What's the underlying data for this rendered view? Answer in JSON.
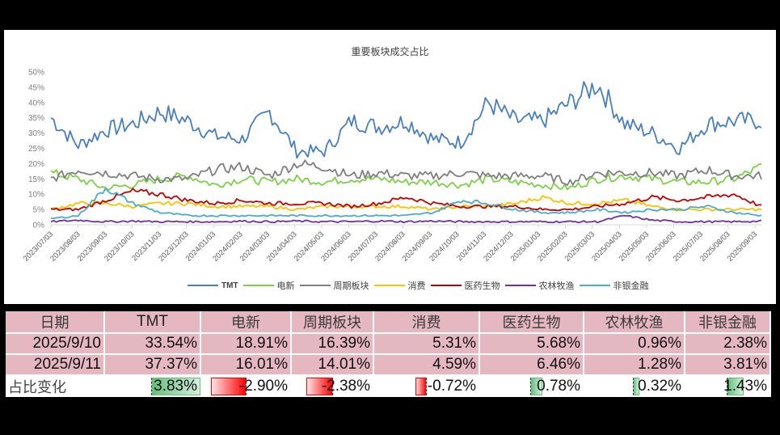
{
  "chart": {
    "title": "重要板块成交占比",
    "y_ticks": [
      "0%",
      "5%",
      "10%",
      "15%",
      "20%",
      "25%",
      "30%",
      "35%",
      "40%",
      "45%",
      "50%"
    ],
    "x_ticks": [
      "2023/07/03",
      "2023/08/03",
      "2023/09/03",
      "2023/10/03",
      "2023/11/03",
      "2023/12/03",
      "2024/01/03",
      "2024/02/03",
      "2024/03/03",
      "2024/04/03",
      "2024/05/03",
      "2024/06/03",
      "2024/07/03",
      "2024/08/03",
      "2024/09/03",
      "2024/10/03",
      "2024/11/03",
      "2024/12/03",
      "2025/01/03",
      "2025/02/03",
      "2025/03/03",
      "2025/04/03",
      "2025/05/03",
      "2025/06/03",
      "2025/07/03",
      "2025/08/03",
      "2025/09/03"
    ],
    "legend": [
      {
        "label": "TMT",
        "color": "#4a7ebb"
      },
      {
        "label": "电新",
        "color": "#7fcf4d"
      },
      {
        "label": "周期板块",
        "color": "#7f7f7f"
      },
      {
        "label": "消费",
        "color": "#ffc000"
      },
      {
        "label": "医药生物",
        "color": "#c00000"
      },
      {
        "label": "农林牧渔",
        "color": "#7030a0"
      },
      {
        "label": "非银金融",
        "color": "#4bacc6"
      }
    ]
  },
  "chart_data": {
    "type": "line",
    "title": "重要板块成交占比",
    "xlabel": "",
    "ylabel": "",
    "ylim": [
      0,
      0.5
    ],
    "y_format": "percent",
    "grid": false,
    "legend_position": "bottom",
    "x": [
      "2023/07",
      "2023/08",
      "2023/09",
      "2023/10",
      "2023/11",
      "2023/12",
      "2024/01",
      "2024/02",
      "2024/03",
      "2024/04",
      "2024/05",
      "2024/06",
      "2024/07",
      "2024/08",
      "2024/09",
      "2024/10",
      "2024/11",
      "2024/12",
      "2025/01",
      "2025/02",
      "2025/03",
      "2025/04",
      "2025/05",
      "2025/06",
      "2025/07",
      "2025/08",
      "2025/09"
    ],
    "series": [
      {
        "name": "TMT",
        "color": "#4a7ebb",
        "values": [
          0.35,
          0.26,
          0.31,
          0.33,
          0.37,
          0.34,
          0.29,
          0.28,
          0.37,
          0.24,
          0.24,
          0.34,
          0.32,
          0.34,
          0.28,
          0.27,
          0.4,
          0.34,
          0.34,
          0.4,
          0.46,
          0.33,
          0.3,
          0.25,
          0.33,
          0.34,
          0.34
        ]
      },
      {
        "name": "电新",
        "color": "#7fcf4d",
        "values": [
          0.17,
          0.15,
          0.12,
          0.13,
          0.15,
          0.16,
          0.13,
          0.15,
          0.14,
          0.15,
          0.14,
          0.15,
          0.15,
          0.14,
          0.14,
          0.13,
          0.15,
          0.14,
          0.13,
          0.12,
          0.15,
          0.16,
          0.15,
          0.14,
          0.14,
          0.15,
          0.19
        ]
      },
      {
        "name": "周期板块",
        "color": "#7f7f7f",
        "values": [
          0.15,
          0.18,
          0.17,
          0.16,
          0.15,
          0.15,
          0.18,
          0.19,
          0.16,
          0.2,
          0.19,
          0.16,
          0.17,
          0.16,
          0.16,
          0.17,
          0.16,
          0.16,
          0.16,
          0.14,
          0.17,
          0.17,
          0.17,
          0.16,
          0.18,
          0.16,
          0.16
        ]
      },
      {
        "name": "消费",
        "color": "#ffc000",
        "values": [
          0.05,
          0.07,
          0.07,
          0.06,
          0.07,
          0.07,
          0.06,
          0.06,
          0.06,
          0.05,
          0.06,
          0.06,
          0.06,
          0.06,
          0.05,
          0.06,
          0.06,
          0.07,
          0.09,
          0.07,
          0.07,
          0.08,
          0.06,
          0.05,
          0.05,
          0.05,
          0.05
        ]
      },
      {
        "name": "医药生物",
        "color": "#c00000",
        "values": [
          0.05,
          0.05,
          0.08,
          0.11,
          0.1,
          0.08,
          0.07,
          0.08,
          0.07,
          0.07,
          0.07,
          0.06,
          0.07,
          0.09,
          0.07,
          0.06,
          0.06,
          0.06,
          0.05,
          0.05,
          0.06,
          0.07,
          0.09,
          0.08,
          0.09,
          0.1,
          0.06
        ]
      },
      {
        "name": "农林牧渔",
        "color": "#7030a0",
        "values": [
          0.01,
          0.015,
          0.01,
          0.012,
          0.01,
          0.01,
          0.01,
          0.012,
          0.01,
          0.012,
          0.01,
          0.01,
          0.012,
          0.01,
          0.012,
          0.01,
          0.01,
          0.01,
          0.01,
          0.01,
          0.01,
          0.03,
          0.015,
          0.01,
          0.01,
          0.01,
          0.012
        ]
      },
      {
        "name": "非银金融",
        "color": "#4bacc6",
        "values": [
          0.02,
          0.03,
          0.12,
          0.07,
          0.04,
          0.03,
          0.03,
          0.03,
          0.03,
          0.03,
          0.03,
          0.03,
          0.03,
          0.03,
          0.04,
          0.08,
          0.07,
          0.05,
          0.04,
          0.04,
          0.05,
          0.04,
          0.05,
          0.05,
          0.06,
          0.04,
          0.03
        ]
      }
    ]
  },
  "table": {
    "headers": [
      "日期",
      "TMT",
      "电新",
      "周期板块",
      "消费",
      "医药生物",
      "农林牧渔",
      "非银金融"
    ],
    "rows": [
      {
        "date": "2025/9/10",
        "values": [
          "33.54%",
          "18.91%",
          "16.39%",
          "5.31%",
          "5.68%",
          "0.96%",
          "2.38%"
        ]
      },
      {
        "date": "2025/9/11",
        "values": [
          "37.37%",
          "16.01%",
          "14.01%",
          "4.59%",
          "6.46%",
          "1.28%",
          "3.81%"
        ]
      }
    ],
    "change_label": "占比变化",
    "changes": [
      "3.83%",
      "-2.90%",
      "-2.38%",
      "-0.72%",
      "0.78%",
      "0.32%",
      "1.43%"
    ],
    "positive_color": "#63be7b",
    "negative_color": "#ff0000",
    "header_bg": "#e5b8c1"
  }
}
